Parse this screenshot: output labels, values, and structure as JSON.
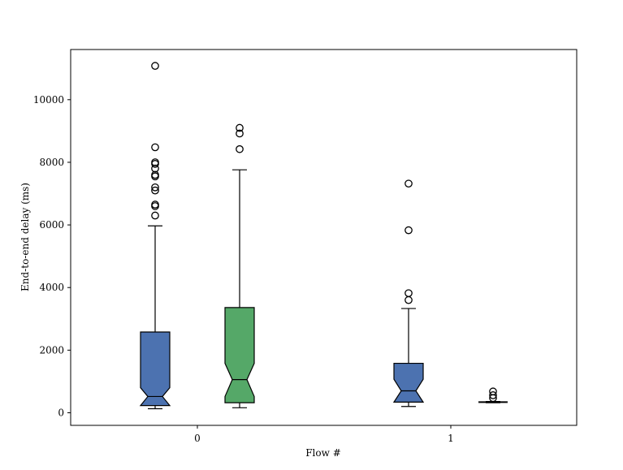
{
  "chart_data": {
    "type": "boxplot",
    "xlabel": "Flow #",
    "ylabel": "End-to-end delay (ms)",
    "ylim": [
      -400,
      11800
    ],
    "yticks": [
      0,
      2000,
      4000,
      6000,
      8000,
      10000
    ],
    "categories": [
      "0",
      "1"
    ],
    "notched": true,
    "grid": false,
    "colors": {
      "blue": "#4c72b0",
      "green": "#55a868"
    },
    "boxes": [
      {
        "category": "0",
        "color": "#4c72b0",
        "whislo": 130,
        "q1": 230,
        "med": 520,
        "notch_lo": 230,
        "notch_hi": 800,
        "q3": 2580,
        "whishi": 5970,
        "fliers": [
          6300,
          6600,
          6650,
          7100,
          7200,
          7550,
          7600,
          7800,
          7950,
          8000,
          8480,
          11080
        ]
      },
      {
        "category": "0",
        "color": "#55a868",
        "whislo": 160,
        "q1": 320,
        "med": 1060,
        "notch_lo": 520,
        "notch_hi": 1580,
        "q3": 3360,
        "whishi": 7760,
        "fliers": [
          8420,
          8920,
          9100
        ]
      },
      {
        "category": "1",
        "color": "#4c72b0",
        "whislo": 200,
        "q1": 340,
        "med": 700,
        "notch_lo": 340,
        "notch_hi": 1070,
        "q3": 1580,
        "whishi": 3330,
        "fliers": [
          3600,
          3820,
          5830,
          7320
        ]
      },
      {
        "category": "1",
        "color": "#4c72b0",
        "whislo": 320,
        "q1": 330,
        "med": 340,
        "notch_lo": 330,
        "notch_hi": 350,
        "q3": 350,
        "whishi": 360,
        "fliers": [
          470,
          560,
          680
        ]
      }
    ]
  }
}
